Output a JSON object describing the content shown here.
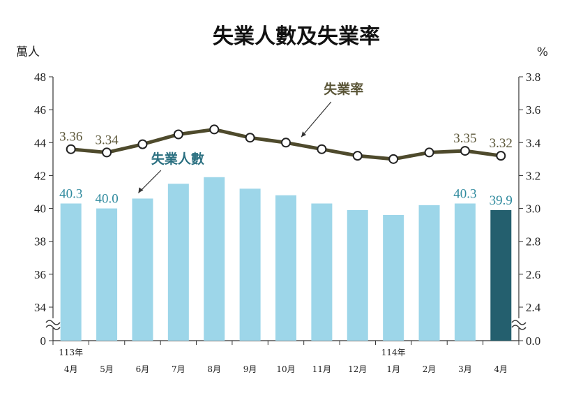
{
  "chart_data": {
    "type": "bar",
    "title": "失業人數及失業率",
    "left_unit": "萬人",
    "right_unit": "%",
    "left_ticks": [
      "0",
      "34",
      "36",
      "38",
      "40",
      "42",
      "44",
      "46",
      "48"
    ],
    "right_ticks": [
      "0.0",
      "2.4",
      "2.6",
      "2.8",
      "3.0",
      "3.2",
      "3.4",
      "3.6",
      "3.8"
    ],
    "left_range": [
      34,
      48
    ],
    "right_range": [
      2.4,
      3.8
    ],
    "axis_break": true,
    "categories": [
      "4月",
      "5月",
      "6月",
      "7月",
      "8月",
      "9月",
      "10月",
      "11月",
      "12月",
      "1月",
      "2月",
      "3月",
      "4月"
    ],
    "year_labels": [
      {
        "index": 0,
        "text": "113年"
      },
      {
        "index": 9,
        "text": "114年"
      }
    ],
    "series": [
      {
        "name": "失業人數",
        "kind": "bar",
        "axis": "left",
        "values": [
          40.3,
          40.0,
          40.6,
          41.5,
          41.9,
          41.2,
          40.8,
          40.3,
          39.9,
          39.6,
          40.2,
          40.3,
          39.9
        ],
        "color": "#9dd6e9",
        "highlight_last_color": "#245f6e",
        "labeled": [
          {
            "index": 0,
            "text": "40.3"
          },
          {
            "index": 1,
            "text": "40.0"
          },
          {
            "index": 11,
            "text": "40.3"
          },
          {
            "index": 12,
            "text": "39.9"
          }
        ]
      },
      {
        "name": "失業率",
        "kind": "line",
        "axis": "right",
        "values": [
          3.36,
          3.34,
          3.39,
          3.45,
          3.48,
          3.43,
          3.4,
          3.36,
          3.32,
          3.3,
          3.34,
          3.35,
          3.32
        ],
        "color": "#4e4a2c",
        "labeled": [
          {
            "index": 0,
            "text": "3.36"
          },
          {
            "index": 1,
            "text": "3.34"
          },
          {
            "index": 11,
            "text": "3.35"
          },
          {
            "index": 12,
            "text": "3.32"
          }
        ]
      }
    ],
    "annotations": {
      "rate": "失業率",
      "unemployed": "失業人數"
    }
  }
}
